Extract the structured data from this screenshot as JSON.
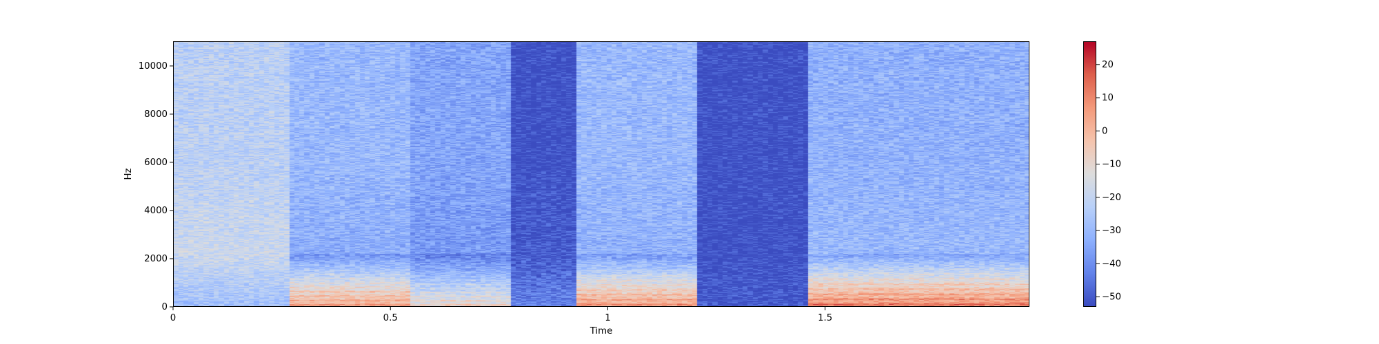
{
  "chart_data": {
    "type": "heatmap",
    "title": "",
    "xlabel": "Time",
    "ylabel": "Hz",
    "xlim": [
      0,
      1.97
    ],
    "ylim": [
      0,
      11025
    ],
    "x_ticks": [
      0,
      0.5,
      1,
      1.5
    ],
    "x_tick_labels": [
      "0",
      "0.5",
      "1",
      "1.5"
    ],
    "y_ticks": [
      0,
      2000,
      4000,
      6000,
      8000,
      10000
    ],
    "y_tick_labels": [
      "0",
      "2000",
      "4000",
      "6000",
      "8000",
      "10000"
    ],
    "colorbar": {
      "colormap": "coolwarm",
      "range": [
        -53,
        27
      ],
      "ticks": [
        -50,
        -40,
        -30,
        -20,
        -10,
        0,
        10,
        20
      ],
      "tick_labels": [
        "−50",
        "−40",
        "−30",
        "−20",
        "−10",
        "0",
        "10",
        "20"
      ]
    },
    "segments": [
      {
        "t_start": 0.0,
        "t_end": 0.27,
        "level_low": -28,
        "level_mid": -18,
        "level_high": -22,
        "harmonic_f0": 0
      },
      {
        "t_start": 0.27,
        "t_end": 0.55,
        "level_low": 8,
        "level_mid": -33,
        "level_high": -30,
        "harmonic_f0": 180
      },
      {
        "t_start": 0.55,
        "t_end": 0.78,
        "level_low": -5,
        "level_mid": -38,
        "level_high": -35,
        "harmonic_f0": 170
      },
      {
        "t_start": 0.78,
        "t_end": 0.93,
        "level_low": -42,
        "level_mid": -50,
        "level_high": -53,
        "harmonic_f0": 0
      },
      {
        "t_start": 0.93,
        "t_end": 1.2,
        "level_low": 10,
        "level_mid": -32,
        "level_high": -30,
        "harmonic_f0": 200
      },
      {
        "t_start": 1.2,
        "t_end": 1.46,
        "level_low": -50,
        "level_mid": -53,
        "level_high": -53,
        "harmonic_f0": 0
      },
      {
        "t_start": 1.46,
        "t_end": 1.97,
        "level_low": 15,
        "level_mid": -30,
        "level_high": -32,
        "harmonic_f0": 210
      }
    ]
  }
}
